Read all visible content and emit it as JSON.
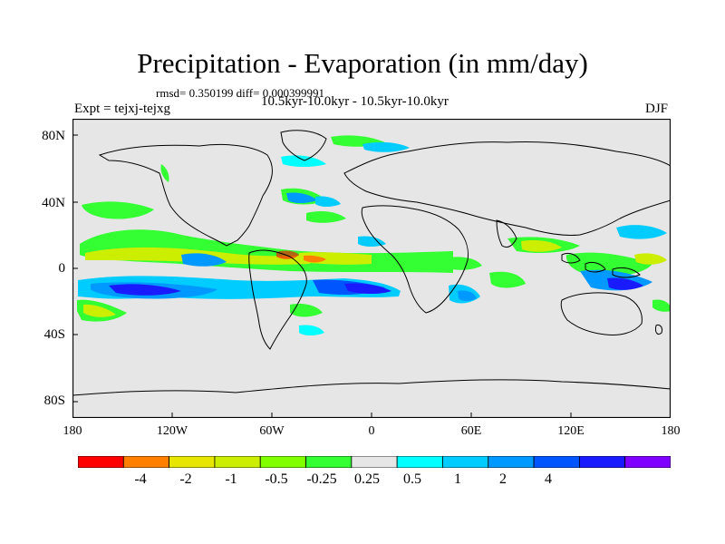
{
  "title": "Precipitation - Evaporation (in mm/day)",
  "stats": "rmsd= 0.350199 diff= 0.000399991",
  "experiment": "Expt = tejxj-tejxg",
  "period": "10.5kyr-10.0kyr - 10.5kyr-10.0kyr",
  "season": "DJF",
  "map": {
    "background_color": "#e6e6e6",
    "lat_ticks": [
      "80N",
      "40N",
      "0",
      "40S",
      "80S"
    ],
    "lon_ticks": [
      "180",
      "120W",
      "60W",
      "0",
      "60E",
      "120E",
      "180"
    ]
  },
  "colorbar": {
    "colors": [
      "#ff0000",
      "#ff8000",
      "#e6e600",
      "#ccee00",
      "#80ff00",
      "#33ff33",
      "#e6e6e6",
      "#00ffff",
      "#00ccff",
      "#0099ff",
      "#0055ff",
      "#1a1aff",
      "#8000ff"
    ],
    "labels": [
      "-4",
      "-2",
      "-1",
      "-0.5",
      "-0.25",
      "0.25",
      "0.5",
      "1",
      "2",
      "4"
    ]
  }
}
